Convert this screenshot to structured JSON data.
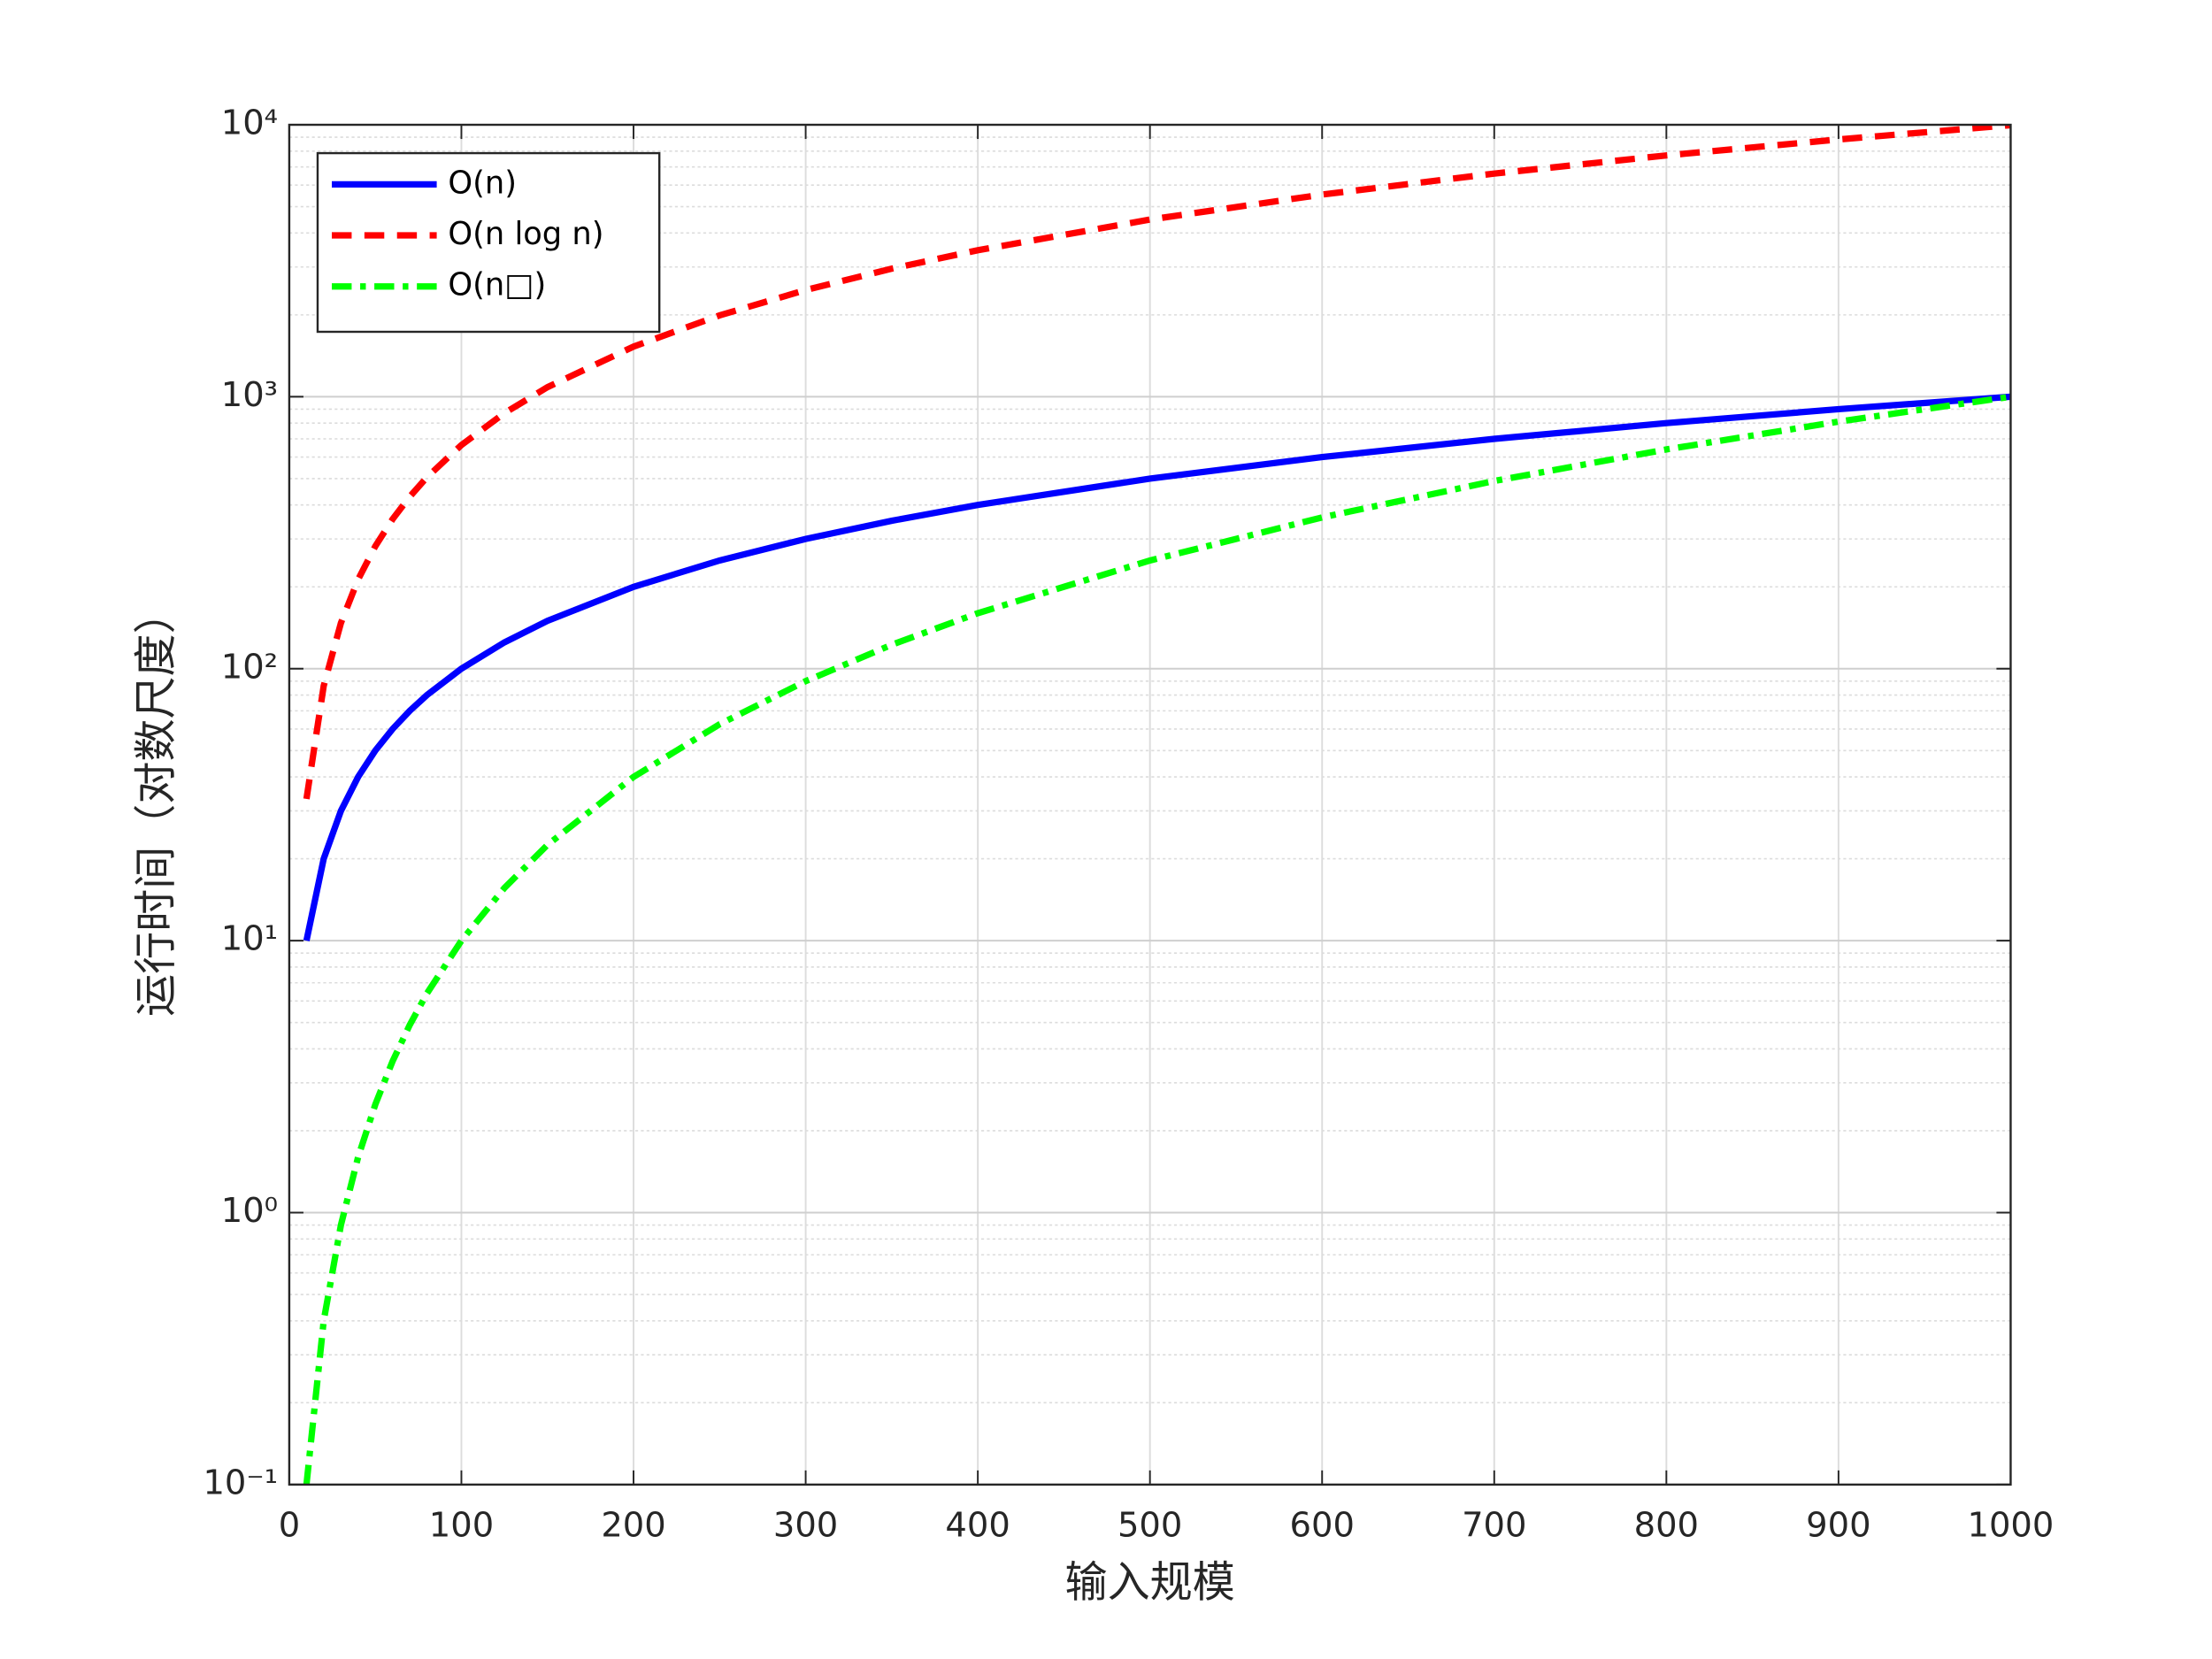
{
  "chart_data": {
    "type": "line",
    "xlabel": "输入规模",
    "ylabel": "运行时间（对数尺度）",
    "x": [
      10,
      20,
      30,
      40,
      50,
      60,
      70,
      80,
      100,
      125,
      150,
      200,
      250,
      300,
      350,
      400,
      500,
      600,
      700,
      800,
      900,
      1000
    ],
    "series": [
      {
        "name": "O(n)",
        "color": "#0000ff",
        "linestyle": "solid",
        "values": [
          10,
          20,
          30,
          40,
          50,
          60,
          70,
          80,
          100,
          125,
          150,
          200,
          250,
          300,
          350,
          400,
          500,
          600,
          700,
          800,
          900,
          1000
        ]
      },
      {
        "name": "O(n log n)",
        "color": "#ff0000",
        "linestyle": "dashed",
        "values": [
          33.2,
          86.4,
          147.2,
          212.9,
          282.2,
          354.4,
          429.1,
          505.8,
          664.4,
          870.7,
          1084.3,
          1528.8,
          1991.4,
          2468.6,
          2957.9,
          3457.5,
          4482.9,
          5537.3,
          6615.9,
          7715.1,
          8832.4,
          9965.8
        ]
      },
      {
        "name": "O(n□)",
        "color": "#00ff00",
        "linestyle": "dashdot",
        "values": [
          0.1,
          0.4,
          0.9,
          1.6,
          2.5,
          3.6,
          4.9,
          6.4,
          10,
          15.625,
          22.5,
          40,
          62.5,
          90,
          122.5,
          160,
          250,
          360,
          490,
          640,
          810,
          1000
        ]
      }
    ],
    "xlim": [
      0,
      1000
    ],
    "xticks": [
      0,
      100,
      200,
      300,
      400,
      500,
      600,
      700,
      800,
      900,
      1000
    ],
    "ylim": [
      0.1,
      10000
    ],
    "ylog": true,
    "yticks": [
      {
        "value": 0.1,
        "label": "10⁻¹"
      },
      {
        "value": 1,
        "label": "10⁰"
      },
      {
        "value": 10,
        "label": "10¹"
      },
      {
        "value": 100,
        "label": "10²"
      },
      {
        "value": 1000,
        "label": "10³"
      },
      {
        "value": 10000,
        "label": "10⁴"
      }
    ],
    "grid": true,
    "minor_grid": true,
    "legend": "upper left"
  }
}
